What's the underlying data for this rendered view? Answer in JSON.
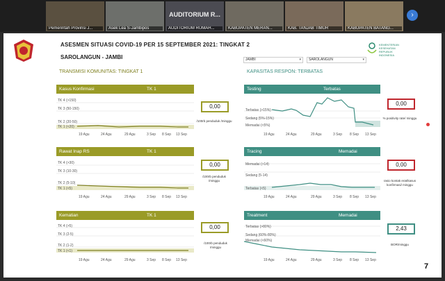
{
  "participants": [
    {
      "name": "Pemerintah Provinsi J..."
    },
    {
      "name": "Asek Lea S-Jambipos"
    },
    {
      "name": "AUDITORIUM RUMAH..."
    },
    {
      "name": "KABUPATEN MERAN..."
    },
    {
      "name": "KAB. TANJAB TIMUR"
    },
    {
      "name": "KABUPATEN BATANG..."
    }
  ],
  "auditorium_title": "AUDITORIUM R...",
  "slide": {
    "title": "ASESMEN SITUASI COVID-19 PER 15 SEPTEMBER 2021: TINGKAT 2",
    "location": "SAROLANGUN - JAMBI",
    "kemenkes": [
      "KEMENTERIAN",
      "KESEHATAN",
      "REPUBLIK",
      "INDONESIA"
    ],
    "filter_province": "JAMBI",
    "filter_regency": "SAROLANGUN",
    "left_section": "TRANSMISI KOMUNITAS: TINGKAT 1",
    "right_section": "KAPASITAS RESPON: TERBATAS",
    "page_number": "7",
    "x_ticks": [
      "19 Agu",
      "24 Agu",
      "29 Agu",
      "3 Sep",
      "8 Sep",
      "13 Sep"
    ],
    "left_cards": [
      {
        "title": "Kasus Konfirmasi",
        "level": "TK 1",
        "value": "0,00",
        "unit": "/100rb penduduk /minggu",
        "bands": [
          "TK 4 (>150)",
          "TK 3 (50-150)",
          "TK 2 (20-50)",
          "TK 1 (<20)"
        ]
      },
      {
        "title": "Rawat Inap RS",
        "level": "TK 1",
        "value": "0,00",
        "unit": "/100rb penduduk /minggu",
        "bands": [
          "TK 4 (>30)",
          "TK 3 (10-30)",
          "TK 2 (5-10)",
          "TK 1 (<5)"
        ]
      },
      {
        "title": "Kematian",
        "level": "TK 1",
        "value": "0,00",
        "unit": "/100rb penduduk /minggu",
        "bands": [
          "TK 4 (>5)",
          "TK 3 (2-5)",
          "TK 2 (1-2)",
          "TK 1 (<1)"
        ]
      }
    ],
    "right_cards": [
      {
        "title": "Testing",
        "level": "Terbatas",
        "value": "0,00",
        "unit": "% positivity rate/ minggu",
        "bands": [
          "Terbatas (>15%)",
          "Sedang (5%-15%)",
          "Memadai (<5%)"
        ]
      },
      {
        "title": "Tracing",
        "level": "Memadai",
        "value": "0,00",
        "unit": "rasio kontak erat/kasus konfirmasi/ minggu",
        "bands": [
          "Memadai (>14)",
          "Sedang (5-14)",
          "Terbatas (<5)"
        ]
      },
      {
        "title": "Treatment",
        "level": "Memadai",
        "value": "2,43",
        "unit": "BOR/minggu",
        "bands": [
          "Terbatas (>80%)",
          "Sedang (60%-80%)",
          "Memadai (<60%)"
        ]
      }
    ]
  },
  "colors": {
    "olive": "#9a9b27",
    "teal": "#3f8f83",
    "red": "#c0262d"
  },
  "icons": {
    "next": "chevron-right-icon",
    "logo": "military-emblem-icon"
  }
}
